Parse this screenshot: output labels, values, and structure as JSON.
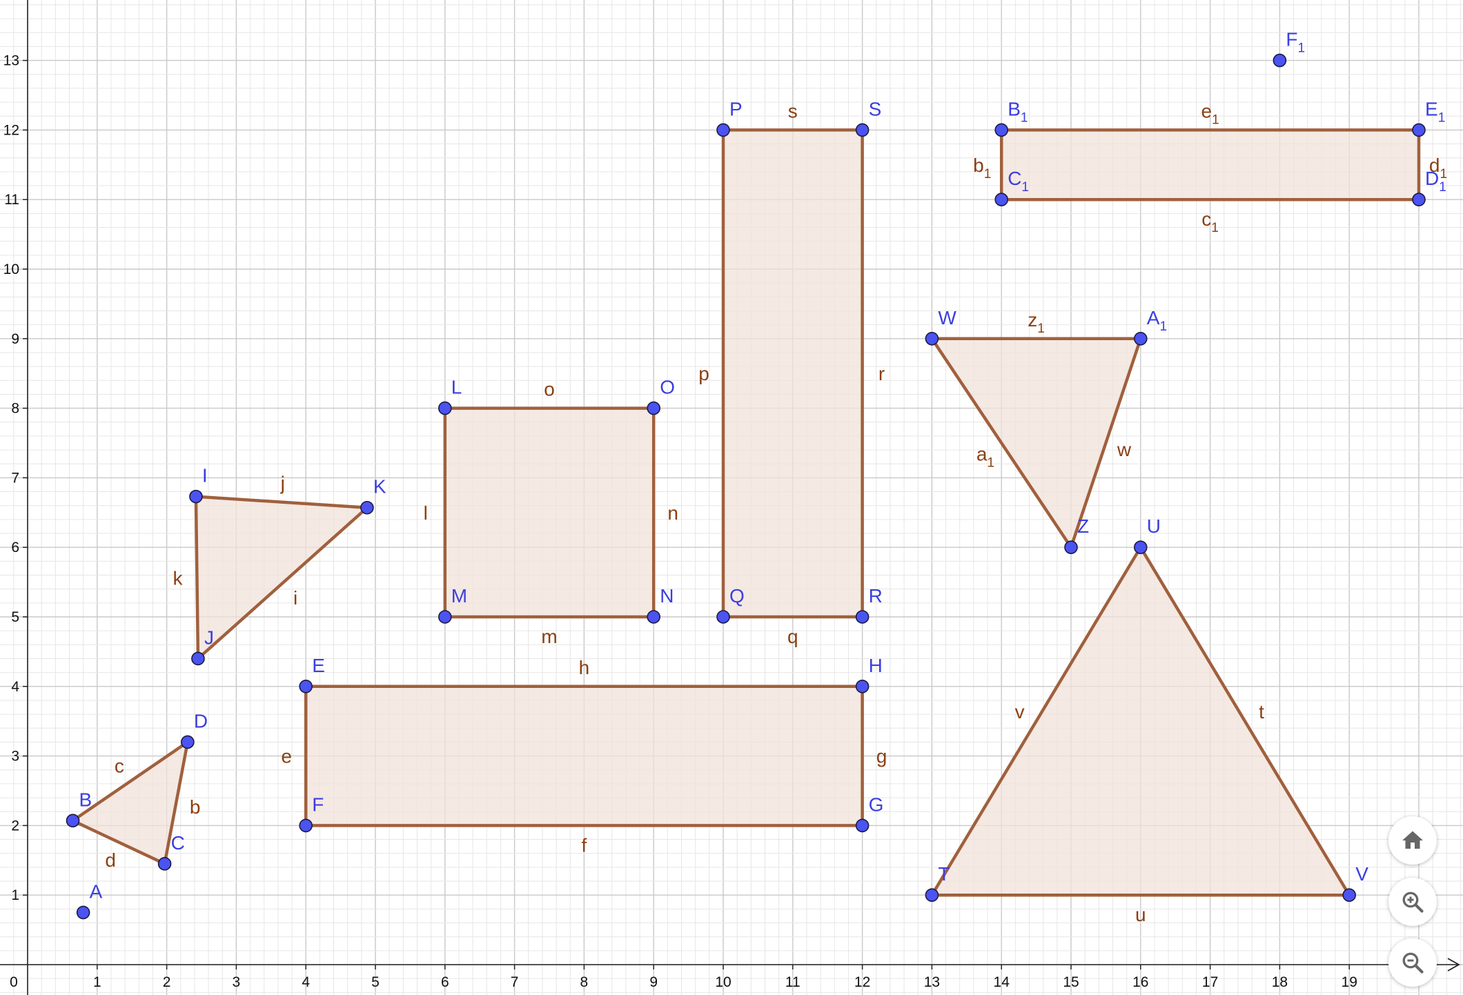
{
  "axes": {
    "x_ticks": [
      "1",
      "2",
      "3",
      "4",
      "5",
      "6",
      "7",
      "8",
      "9",
      "10",
      "11",
      "12",
      "13",
      "14",
      "15",
      "16",
      "17",
      "18",
      "19"
    ],
    "y_ticks": [
      "1",
      "2",
      "3",
      "4",
      "5",
      "6",
      "7",
      "8",
      "9",
      "10",
      "11",
      "12",
      "13"
    ],
    "origin_label": "0"
  },
  "colors": {
    "point": "#4b53f0",
    "point_label": "#3b3fe0",
    "segment": "#a0603d",
    "segment_label": "#8b3f12",
    "fill": "#f1e1d9"
  },
  "points": [
    {
      "name": "A",
      "sub": "",
      "x": 0.8,
      "y": 0.75
    },
    {
      "name": "B",
      "sub": "",
      "x": 0.65,
      "y": 2.07
    },
    {
      "name": "C",
      "sub": "",
      "x": 1.97,
      "y": 1.45
    },
    {
      "name": "D",
      "sub": "",
      "x": 2.3,
      "y": 3.2
    },
    {
      "name": "E",
      "sub": "",
      "x": 4,
      "y": 4
    },
    {
      "name": "F",
      "sub": "",
      "x": 4,
      "y": 2
    },
    {
      "name": "G",
      "sub": "",
      "x": 12,
      "y": 2
    },
    {
      "name": "H",
      "sub": "",
      "x": 12,
      "y": 4
    },
    {
      "name": "I",
      "sub": "",
      "x": 2.42,
      "y": 6.73
    },
    {
      "name": "J",
      "sub": "",
      "x": 2.45,
      "y": 4.4
    },
    {
      "name": "K",
      "sub": "",
      "x": 4.88,
      "y": 6.57
    },
    {
      "name": "L",
      "sub": "",
      "x": 6,
      "y": 8
    },
    {
      "name": "M",
      "sub": "",
      "x": 6,
      "y": 5
    },
    {
      "name": "N",
      "sub": "",
      "x": 9,
      "y": 5
    },
    {
      "name": "O",
      "sub": "",
      "x": 9,
      "y": 8
    },
    {
      "name": "P",
      "sub": "",
      "x": 10,
      "y": 12
    },
    {
      "name": "Q",
      "sub": "",
      "x": 10,
      "y": 5
    },
    {
      "name": "R",
      "sub": "",
      "x": 12,
      "y": 5
    },
    {
      "name": "S",
      "sub": "",
      "x": 12,
      "y": 12
    },
    {
      "name": "T",
      "sub": "",
      "x": 13,
      "y": 1
    },
    {
      "name": "U",
      "sub": "",
      "x": 16,
      "y": 6
    },
    {
      "name": "V",
      "sub": "",
      "x": 19,
      "y": 1
    },
    {
      "name": "W",
      "sub": "",
      "x": 13,
      "y": 9
    },
    {
      "name": "Z",
      "sub": "",
      "x": 15,
      "y": 6
    },
    {
      "name": "A",
      "sub": "1",
      "x": 16,
      "y": 9
    },
    {
      "name": "B",
      "sub": "1",
      "x": 14,
      "y": 12
    },
    {
      "name": "C",
      "sub": "1",
      "x": 14,
      "y": 11
    },
    {
      "name": "D",
      "sub": "1",
      "x": 20,
      "y": 11
    },
    {
      "name": "E",
      "sub": "1",
      "x": 20,
      "y": 12
    },
    {
      "name": "F",
      "sub": "1",
      "x": 18,
      "y": 13
    }
  ],
  "polygons": [
    {
      "vertices": [
        "B",
        "C",
        "D"
      ],
      "segments": [
        {
          "name": "d",
          "sub": ""
        },
        {
          "name": "b",
          "sub": ""
        },
        {
          "name": "c",
          "sub": ""
        }
      ]
    },
    {
      "vertices": [
        "E",
        "F",
        "G",
        "H"
      ],
      "segments": [
        {
          "name": "e",
          "sub": ""
        },
        {
          "name": "f",
          "sub": ""
        },
        {
          "name": "g",
          "sub": ""
        },
        {
          "name": "h",
          "sub": ""
        }
      ]
    },
    {
      "vertices": [
        "I",
        "J",
        "K"
      ],
      "segments": [
        {
          "name": "k",
          "sub": ""
        },
        {
          "name": "i",
          "sub": ""
        },
        {
          "name": "j",
          "sub": ""
        }
      ]
    },
    {
      "vertices": [
        "L",
        "M",
        "N",
        "O"
      ],
      "segments": [
        {
          "name": "l",
          "sub": ""
        },
        {
          "name": "m",
          "sub": ""
        },
        {
          "name": "n",
          "sub": ""
        },
        {
          "name": "o",
          "sub": ""
        }
      ]
    },
    {
      "vertices": [
        "P",
        "Q",
        "R",
        "S"
      ],
      "segments": [
        {
          "name": "p",
          "sub": ""
        },
        {
          "name": "q",
          "sub": ""
        },
        {
          "name": "r",
          "sub": ""
        },
        {
          "name": "s",
          "sub": ""
        }
      ]
    },
    {
      "vertices": [
        "T",
        "U",
        "V"
      ],
      "segments": [
        {
          "name": "v",
          "sub": ""
        },
        {
          "name": "t",
          "sub": ""
        },
        {
          "name": "u",
          "sub": ""
        }
      ]
    },
    {
      "vertices": [
        "W",
        "Z",
        "A1"
      ],
      "segments": [
        {
          "name": "a",
          "sub": "1"
        },
        {
          "name": "w",
          "sub": ""
        },
        {
          "name": "z",
          "sub": "1"
        }
      ]
    },
    {
      "vertices": [
        "B1",
        "C1",
        "D1",
        "E1"
      ],
      "segments": [
        {
          "name": "b",
          "sub": "1"
        },
        {
          "name": "c",
          "sub": "1"
        },
        {
          "name": "d",
          "sub": "1"
        },
        {
          "name": "e",
          "sub": "1"
        }
      ]
    }
  ],
  "controls": {
    "home": "home-icon",
    "zoom_in": "zoom-in-icon",
    "zoom_out": "zoom-out-icon"
  }
}
